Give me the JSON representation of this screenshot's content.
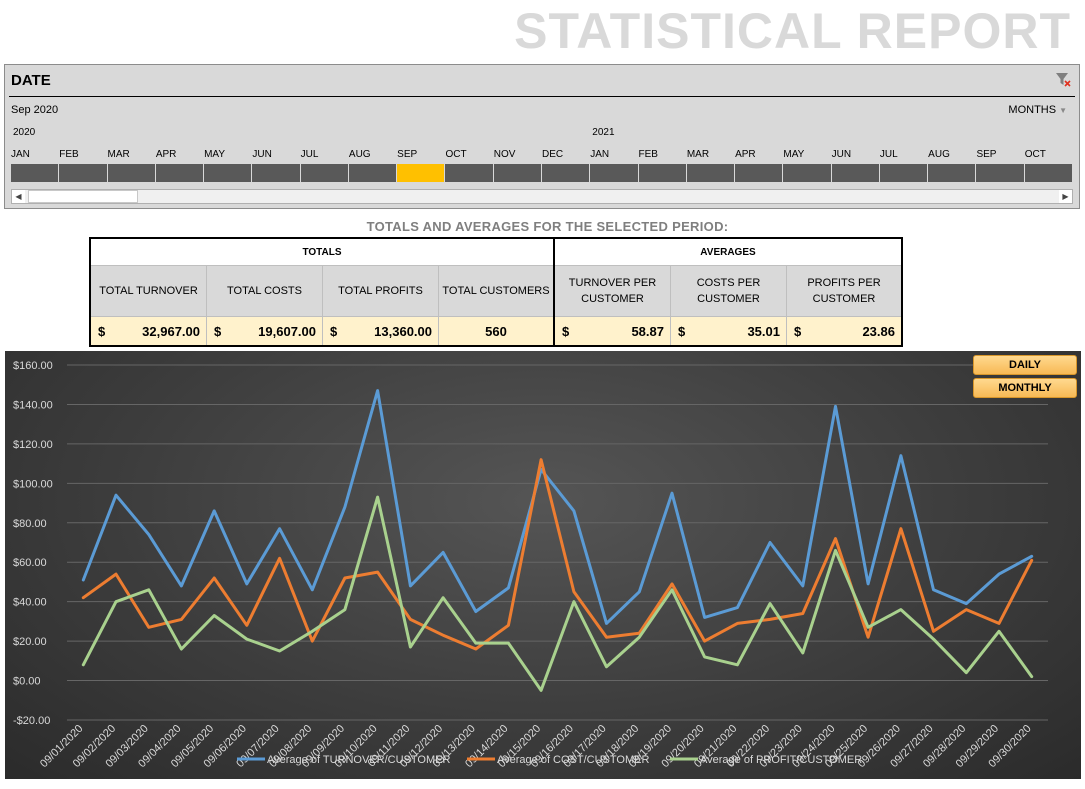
{
  "report_title": "STATISTICAL REPORT",
  "slicer": {
    "header": "DATE",
    "selection_label": "Sep 2020",
    "level_label": "MONTHS",
    "years": [
      "2020",
      "2021"
    ],
    "months": [
      "JAN",
      "FEB",
      "MAR",
      "APR",
      "MAY",
      "JUN",
      "JUL",
      "AUG",
      "SEP",
      "OCT",
      "NOV",
      "DEC",
      "JAN",
      "FEB",
      "MAR",
      "APR",
      "MAY",
      "JUN",
      "JUL",
      "AUG",
      "SEP",
      "OCT"
    ],
    "selected_index": 8,
    "selected_color": "#ffc000",
    "icons": {
      "clear": "clear-filter-icon",
      "scroll_left": "scroll-left-icon",
      "scroll_right": "scroll-right-icon"
    }
  },
  "summary": {
    "title": "TOTALS AND AVERAGES FOR THE SELECTED PERIOD:",
    "totals_label": "TOTALS",
    "averages_label": "AVERAGES",
    "total_turnover": {
      "label": "TOTAL TURNOVER",
      "currency": "$",
      "value": "32,967.00"
    },
    "total_costs": {
      "label": "TOTAL COSTS",
      "currency": "$",
      "value": "19,607.00"
    },
    "total_profits": {
      "label": "TOTAL PROFITS",
      "currency": "$",
      "value": "13,360.00"
    },
    "total_customers": {
      "label": "TOTAL CUSTOMERS",
      "value": "560"
    },
    "turnover_per_customer": {
      "label_1": "TURNOVER PER",
      "label_2": "CUSTOMER",
      "currency": "$",
      "value": "58.87"
    },
    "costs_per_customer": {
      "label_1": "COSTS PER",
      "label_2": "CUSTOMER",
      "currency": "$",
      "value": "35.01"
    },
    "profits_per_customer": {
      "label_1": "PROFITS PER",
      "label_2": "CUSTOMER",
      "currency": "$",
      "value": "23.86"
    }
  },
  "buttons": {
    "daily": "DAILY",
    "monthly": "MONTHLY"
  },
  "chart_data": {
    "type": "line",
    "ylim": [
      -20,
      160
    ],
    "yticks": [
      -20,
      0,
      20,
      40,
      60,
      80,
      100,
      120,
      140,
      160
    ],
    "ytick_labels": [
      "-$20.00",
      "$0.00",
      "$20.00",
      "$40.00",
      "$60.00",
      "$80.00",
      "$100.00",
      "$120.00",
      "$140.00",
      "$160.00"
    ],
    "grid": true,
    "legend_position": "bottom",
    "x": [
      "09/01/2020",
      "09/02/2020",
      "09/03/2020",
      "09/04/2020",
      "09/05/2020",
      "09/06/2020",
      "09/07/2020",
      "09/08/2020",
      "09/09/2020",
      "09/10/2020",
      "09/11/2020",
      "09/12/2020",
      "09/13/2020",
      "09/14/2020",
      "09/15/2020",
      "09/16/2020",
      "09/17/2020",
      "09/18/2020",
      "09/19/2020",
      "09/20/2020",
      "09/21/2020",
      "09/22/2020",
      "09/23/2020",
      "09/24/2020",
      "09/25/2020",
      "09/26/2020",
      "09/27/2020",
      "09/28/2020",
      "09/29/2020",
      "09/30/2020"
    ],
    "series": [
      {
        "name": "Average of TURNOVER/CUSTOMER",
        "color": "#5b9bd5",
        "values": [
          51,
          94,
          74,
          48,
          86,
          49,
          77,
          46,
          88,
          147,
          48,
          65,
          35,
          47,
          107,
          86,
          29,
          45,
          95,
          32,
          37,
          70,
          48,
          139,
          49,
          114,
          46,
          39,
          54,
          63
        ]
      },
      {
        "name": "Average of COST/CUSTOMER",
        "color": "#ed7d31",
        "values": [
          42,
          54,
          27,
          31,
          52,
          28,
          62,
          20,
          52,
          55,
          31,
          23,
          16,
          28,
          112,
          45,
          22,
          24,
          49,
          20,
          29,
          31,
          34,
          72,
          22,
          77,
          25,
          36,
          29,
          61
        ]
      },
      {
        "name": "Average of PROFIT/CUSTOMER",
        "color": "#a9d18e",
        "values": [
          8,
          40,
          46,
          16,
          33,
          21,
          15,
          25,
          36,
          93,
          17,
          42,
          19,
          19,
          -5,
          40,
          7,
          22,
          46,
          12,
          8,
          39,
          14,
          66,
          27,
          36,
          21,
          4,
          25,
          2
        ]
      }
    ]
  }
}
